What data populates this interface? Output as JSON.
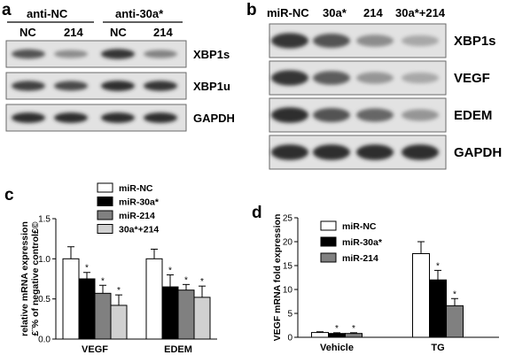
{
  "panels": {
    "a": {
      "letter": "a",
      "groups": [
        "anti-NC",
        "anti-30a*"
      ],
      "lanes": [
        "NC",
        "214",
        "NC",
        "214"
      ],
      "blots": [
        {
          "name": "XBP1s",
          "intensities": [
            0.75,
            0.45,
            0.9,
            0.5
          ]
        },
        {
          "name": "XBP1u",
          "intensities": [
            0.85,
            0.8,
            0.95,
            0.9
          ]
        },
        {
          "name": "GAPDH",
          "intensities": [
            0.95,
            0.95,
            0.95,
            0.95
          ]
        }
      ]
    },
    "b": {
      "letter": "b",
      "lanes": [
        "miR-NC",
        "30a*",
        "214",
        "30a*+214"
      ],
      "blots": [
        {
          "name": "XBP1s",
          "intensities": [
            0.9,
            0.75,
            0.45,
            0.3
          ]
        },
        {
          "name": "VEGF",
          "intensities": [
            0.9,
            0.7,
            0.4,
            0.3
          ]
        },
        {
          "name": "EDEM",
          "intensities": [
            0.95,
            0.75,
            0.65,
            0.4
          ]
        },
        {
          "name": "GAPDH",
          "intensities": [
            0.95,
            0.95,
            0.95,
            0.95
          ]
        }
      ]
    },
    "c": {
      "letter": "c"
    },
    "d": {
      "letter": "d"
    }
  },
  "chart_data": [
    {
      "panel": "c",
      "type": "bar",
      "categories": [
        "VEGF",
        "EDEM"
      ],
      "series": [
        {
          "name": "miR-NC",
          "values": [
            1.0,
            1.0
          ],
          "errors": [
            0.15,
            0.12
          ],
          "color": "#ffffff",
          "sig": [
            false,
            false
          ]
        },
        {
          "name": "miR-30a*",
          "values": [
            0.75,
            0.65
          ],
          "errors": [
            0.08,
            0.15
          ],
          "color": "#000000",
          "sig": [
            true,
            true
          ]
        },
        {
          "name": "miR-214",
          "values": [
            0.57,
            0.61
          ],
          "errors": [
            0.1,
            0.07
          ],
          "color": "#808080",
          "sig": [
            true,
            true
          ]
        },
        {
          "name": "30a*+214",
          "values": [
            0.42,
            0.52
          ],
          "errors": [
            0.13,
            0.14
          ],
          "color": "#d0d0d0",
          "sig": [
            true,
            true
          ]
        }
      ],
      "ylabel_lines": [
        "relative mRNA expression",
        "£¨% of negative control£©"
      ],
      "ylim": [
        0,
        1.5
      ],
      "yticks": [
        "0.0",
        "0.5",
        "1.0",
        "1.5"
      ],
      "legend_position": "top-center"
    },
    {
      "panel": "d",
      "type": "bar",
      "categories": [
        "Vehicle",
        "TG"
      ],
      "series": [
        {
          "name": "miR-NC",
          "values": [
            1.0,
            17.5
          ],
          "errors": [
            0.15,
            2.5
          ],
          "color": "#ffffff",
          "sig": [
            false,
            false
          ]
        },
        {
          "name": "miR-30a*",
          "values": [
            0.8,
            12.0
          ],
          "errors": [
            0.15,
            2.0
          ],
          "color": "#000000",
          "sig": [
            true,
            true
          ]
        },
        {
          "name": "miR-214",
          "values": [
            0.8,
            6.6
          ],
          "errors": [
            0.15,
            1.5
          ],
          "color": "#808080",
          "sig": [
            true,
            true
          ]
        }
      ],
      "ylabel_lines": [
        "VEGF mRNA fold expression"
      ],
      "ylim": [
        0,
        25
      ],
      "yticks": [
        "0",
        "5",
        "10",
        "15",
        "20",
        "25"
      ],
      "legend_position": "top-left"
    }
  ]
}
